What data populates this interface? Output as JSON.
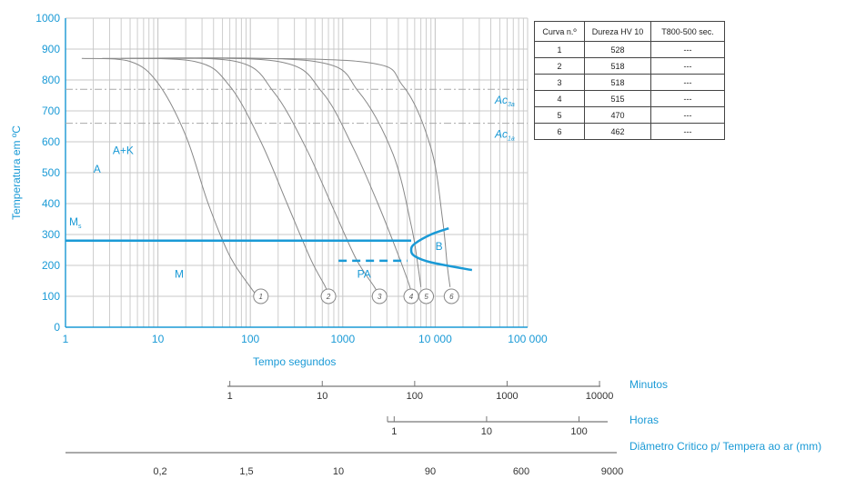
{
  "chart_data": {
    "type": "line",
    "title": "",
    "xlabel": "Tempo segundos",
    "ylabel": "Temperatura em ºC",
    "xscale": "log",
    "xlim": [
      1,
      100000
    ],
    "ylim": [
      0,
      1000
    ],
    "x_ticks": [
      {
        "value": 1,
        "label": "1"
      },
      {
        "value": 10,
        "label": "10"
      },
      {
        "value": 100,
        "label": "100"
      },
      {
        "value": 1000,
        "label": "1000"
      },
      {
        "value": 10000,
        "label": "10 000"
      },
      {
        "value": 100000,
        "label": "100 000"
      }
    ],
    "y_ticks": [
      {
        "value": 0,
        "label": "0"
      },
      {
        "value": 100,
        "label": "100"
      },
      {
        "value": 200,
        "label": "200"
      },
      {
        "value": 300,
        "label": "300"
      },
      {
        "value": 400,
        "label": "400"
      },
      {
        "value": 500,
        "label": "500"
      },
      {
        "value": 600,
        "label": "600"
      },
      {
        "value": 700,
        "label": "700"
      },
      {
        "value": 800,
        "label": "800"
      },
      {
        "value": 900,
        "label": "900"
      },
      {
        "value": 1000,
        "label": "1000"
      }
    ],
    "grid": true,
    "reference_lines": [
      {
        "label": "Ac",
        "subscript": "3a",
        "y": 770
      },
      {
        "label": "Ac",
        "subscript": "1a",
        "y": 660
      }
    ],
    "ms_line": {
      "label": "M",
      "subscript": "s",
      "y": 280,
      "x_end": 5500
    },
    "bainite_nose": {
      "x": [
        14000,
        9000,
        6000,
        5500,
        6000,
        9000,
        25000
      ],
      "y": [
        320,
        300,
        270,
        250,
        230,
        210,
        185
      ]
    },
    "dashed_line": {
      "y": 215,
      "x_start": 900,
      "x_end": 5000
    },
    "regions": [
      {
        "label": "A",
        "x": 2.2,
        "y": 500
      },
      {
        "label": "A+K",
        "x": 4.2,
        "y": 560
      },
      {
        "label": "M",
        "x": 17,
        "y": 160
      },
      {
        "label": "PA",
        "x": 1700,
        "y": 160
      },
      {
        "label": "B",
        "x": 11000,
        "y": 250
      }
    ],
    "series": [
      {
        "label": "1",
        "x": [
          1.5,
          5,
          10,
          20,
          35,
          60,
          100,
          120
        ],
        "y": [
          870,
          860,
          790,
          620,
          400,
          230,
          130,
          100
        ]
      },
      {
        "label": "2",
        "x": [
          2.5,
          25,
          60,
          130,
          250,
          450,
          650,
          700
        ],
        "y": [
          870,
          860,
          780,
          600,
          400,
          220,
          130,
          100
        ]
      },
      {
        "label": "3",
        "x": [
          4,
          70,
          180,
          400,
          800,
          1400,
          2200,
          2500
        ],
        "y": [
          870,
          860,
          760,
          580,
          380,
          220,
          130,
          100
        ]
      },
      {
        "label": "4",
        "x": [
          5,
          200,
          600,
          1300,
          2400,
          3800,
          5200,
          5500
        ],
        "y": [
          870,
          860,
          760,
          580,
          400,
          250,
          140,
          110
        ]
      },
      {
        "label": "5",
        "x": [
          6,
          500,
          1500,
          3500,
          5500,
          6500,
          7000
        ],
        "y": [
          870,
          860,
          760,
          560,
          330,
          200,
          130
        ]
      },
      {
        "label": "6",
        "x": [
          7,
          1500,
          4500,
          9000,
          12000,
          13500,
          14500
        ],
        "y": [
          870,
          860,
          780,
          580,
          350,
          200,
          130
        ]
      }
    ],
    "curve_markers": [
      {
        "label": "1",
        "x": 130,
        "y": 100
      },
      {
        "label": "2",
        "x": 700,
        "y": 100
      },
      {
        "label": "3",
        "x": 2500,
        "y": 100
      },
      {
        "label": "4",
        "x": 5500,
        "y": 100
      },
      {
        "label": "5",
        "x": 8000,
        "y": 100
      },
      {
        "label": "6",
        "x": 15000,
        "y": 100
      }
    ]
  },
  "secondary_axes": [
    {
      "name": "Minutos",
      "ticks": [
        {
          "value": 1,
          "label": "1"
        },
        {
          "value": 10,
          "label": "10"
        },
        {
          "value": 100,
          "label": "100"
        },
        {
          "value": 1000,
          "label": "1000"
        },
        {
          "value": 10000,
          "label": "10000"
        }
      ]
    },
    {
      "name": "Horas",
      "ticks": [
        {
          "value": 1,
          "label": "1"
        },
        {
          "value": 10,
          "label": "10"
        },
        {
          "value": 100,
          "label": "100"
        }
      ]
    },
    {
      "name": "Diâmetro Critico p/ Tempera ao ar (mm)",
      "ticks": [
        {
          "label": "0,2"
        },
        {
          "label": "1,5"
        },
        {
          "label": "10"
        },
        {
          "label": "90"
        },
        {
          "label": "600"
        },
        {
          "label": "9000"
        }
      ]
    }
  ],
  "table": {
    "headers": [
      "Curva n.º",
      "Dureza HV 10",
      "T800-500 sec."
    ],
    "rows": [
      [
        "1",
        "528",
        "---"
      ],
      [
        "2",
        "518",
        "---"
      ],
      [
        "3",
        "518",
        "---"
      ],
      [
        "4",
        "515",
        "---"
      ],
      [
        "5",
        "470",
        "---"
      ],
      [
        "6",
        "462",
        "---"
      ]
    ]
  },
  "colors": {
    "accent": "#1a9ad6",
    "curves": "#888888",
    "grid": "#c8c8c8"
  }
}
